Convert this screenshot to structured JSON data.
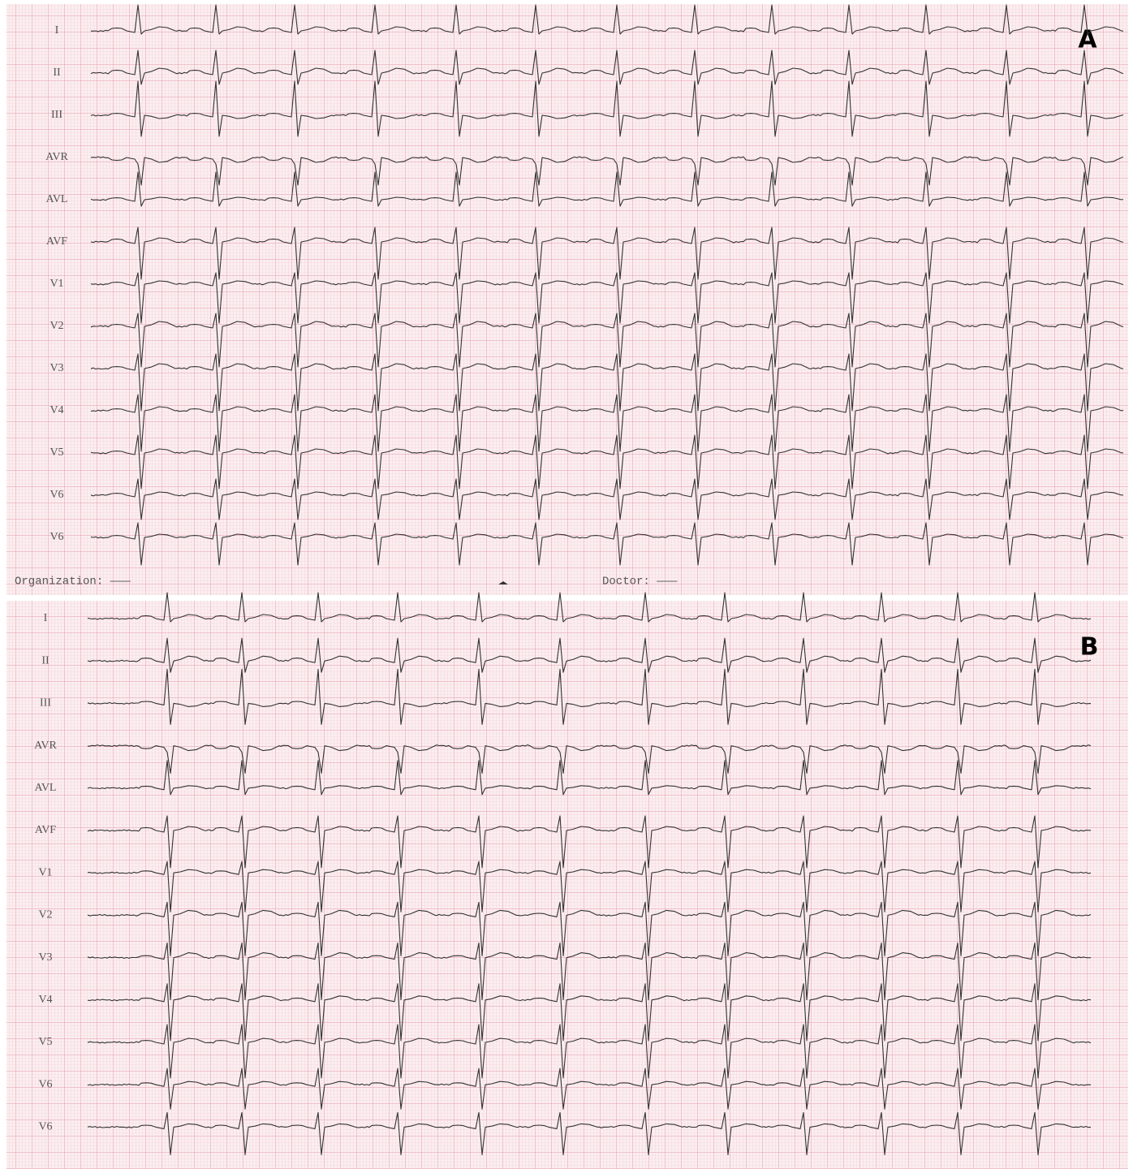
{
  "panels": [
    {
      "label": "A",
      "leads": [
        "I",
        "II",
        "III",
        "AVR",
        "AVL",
        "AVF",
        "V1",
        "V2",
        "V3",
        "V4",
        "V5",
        "V6",
        "V6"
      ],
      "footer": {
        "organization": "Organization: ———",
        "doctor": "Doctor: ———"
      }
    },
    {
      "label": "B",
      "leads": [
        "I",
        "II",
        "III",
        "AVR",
        "AVL",
        "AVF",
        "V1",
        "V2",
        "V3",
        "V4",
        "V5",
        "V6",
        "V6"
      ]
    }
  ]
}
